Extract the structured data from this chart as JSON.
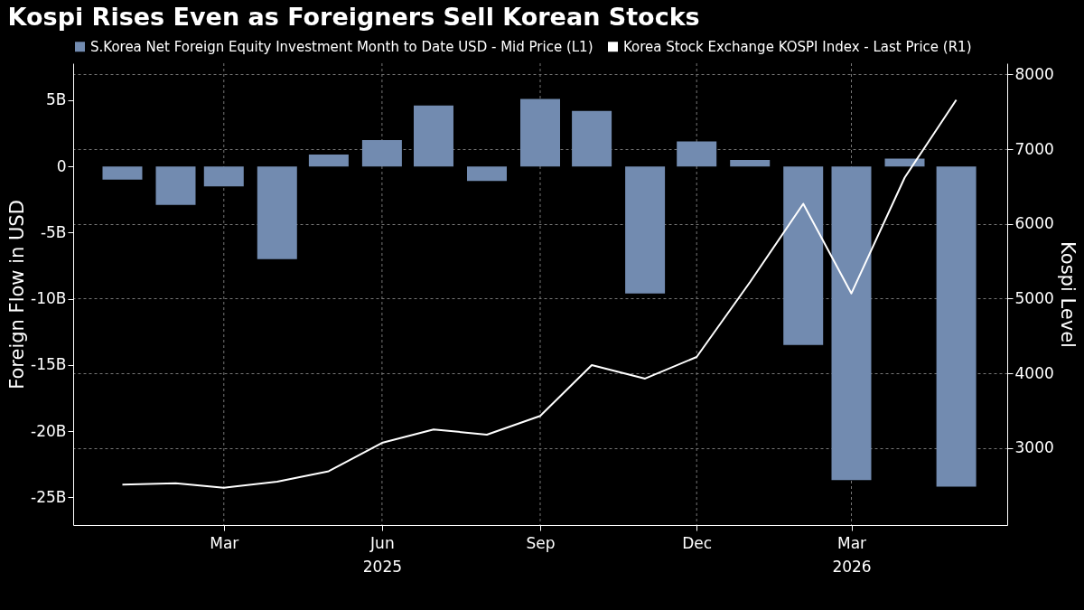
{
  "chart_data": {
    "type": "bar",
    "title": "Kospi Rises Even as Foreigners Sell Korean Stocks",
    "x": [
      "2025-01",
      "2025-02",
      "2025-03",
      "2025-04",
      "2025-05",
      "2025-06",
      "2025-07",
      "2025-08",
      "2025-09",
      "2025-10",
      "2025-11",
      "2025-12",
      "2026-01",
      "2026-02",
      "2026-03",
      "2026-04",
      "2026-05"
    ],
    "xlim": [
      "2024-12-06",
      "2026-05-28"
    ],
    "xticks": [
      {
        "value": "2025-03",
        "label": "Mar"
      },
      {
        "value": "2025-06",
        "label": "Jun\n2025"
      },
      {
        "value": "2025-09",
        "label": "Sep"
      },
      {
        "value": "2025-12",
        "label": "Dec"
      },
      {
        "value": "2026-03",
        "label": "Mar\n2026"
      }
    ],
    "series": [
      {
        "name": "S.Korea Net Foreign Equity Investment Month to Date USD - Mid Price (L1)",
        "color": "#728bb0",
        "values": [
          -1.0,
          -2.9,
          -1.5,
          -7.0,
          0.9,
          2.0,
          4.6,
          -1.1,
          5.1,
          4.2,
          -9.6,
          1.9,
          0.5,
          -13.5,
          -23.7,
          0.6,
          -24.2
        ]
      },
      {
        "name": "Korea Stock Exchange KOSPI Index - Last Price (R1)",
        "type": "line",
        "axis": "y2",
        "color": "#ffffff",
        "values": [
          2510,
          2530,
          2470,
          2550,
          2690,
          3070,
          3250,
          3180,
          3430,
          4110,
          3930,
          4220,
          5220,
          6270,
          5070,
          6620,
          7660
        ]
      }
    ],
    "ylabel": "Foreign Flow in USD",
    "y2label": "Kospi Level",
    "ylim": [
      -27.1,
      7.8
    ],
    "yticks": [
      {
        "value": 5,
        "label": "5B"
      },
      0,
      {
        "value": -5,
        "label": "-5B"
      },
      {
        "value": -10,
        "label": "-10B"
      },
      {
        "value": -15,
        "label": "-15B"
      },
      {
        "value": -20,
        "label": "-20B"
      },
      {
        "value": -25,
        "label": "-25B"
      }
    ],
    "y2lim": [
      1970,
      8150
    ],
    "y2ticks": [
      3000,
      4000,
      5000,
      6000,
      7000,
      8000
    ],
    "grid": true,
    "legend": "top",
    "line_style": "solid",
    "marker": "none"
  }
}
